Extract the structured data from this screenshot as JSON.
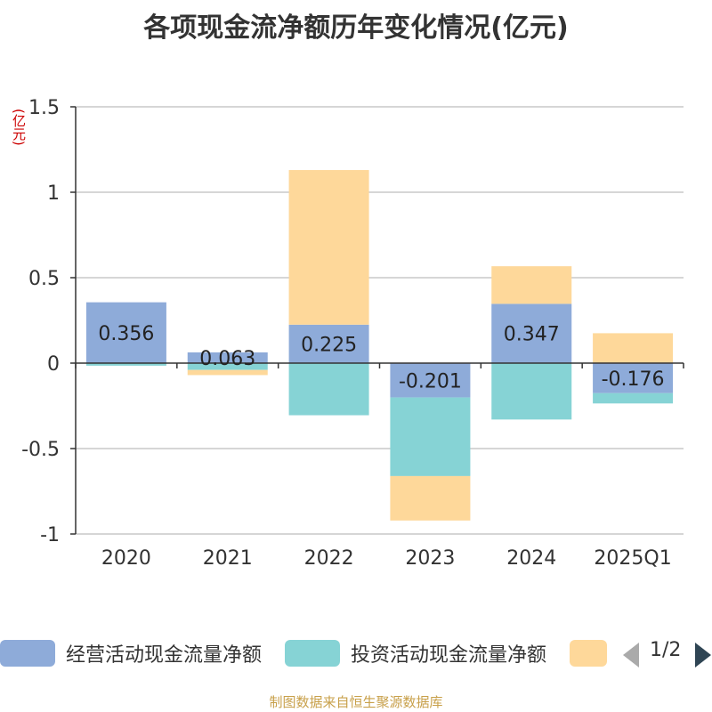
{
  "title": "各项现金流净额历年变化情况(亿元)",
  "unit": "(亿元)",
  "source": "制图数据来自恒生聚源数据库",
  "pager": "1/2",
  "colors": {
    "operating": "#8eabd9",
    "investing": "#86d3d5",
    "financing": "#fed89a",
    "axis": "#333333",
    "grid": "#c8c8c8",
    "text": "#333333"
  },
  "chart_data": {
    "type": "bar",
    "stacked": true,
    "categories": [
      "2020",
      "2021",
      "2022",
      "2023",
      "2024",
      "2025Q1"
    ],
    "series": [
      {
        "name": "经营活动现金流量净额",
        "key": "operating",
        "values": [
          0.356,
          0.063,
          0.225,
          -0.201,
          0.347,
          -0.176
        ]
      },
      {
        "name": "投资活动现金流量净额",
        "key": "investing",
        "values": [
          -0.015,
          -0.04,
          -0.305,
          -0.46,
          -0.33,
          -0.06
        ]
      },
      {
        "name": "",
        "key": "financing",
        "values": [
          0.0,
          -0.03,
          0.905,
          -0.26,
          0.22,
          0.175
        ]
      }
    ],
    "data_labels": [
      "0.356",
      "0.063",
      "0.225",
      "-0.201",
      "0.347",
      "-0.176"
    ],
    "ylim": [
      -1,
      1.5
    ],
    "yticks": [
      1.5,
      1,
      0.5,
      0,
      -0.5,
      -1
    ],
    "ytick_labels": [
      "1.5",
      "1",
      "0.5",
      "0",
      "-0.5",
      "-1"
    ],
    "ylabel": "(亿元)",
    "grid": true,
    "legend": "bottom"
  }
}
